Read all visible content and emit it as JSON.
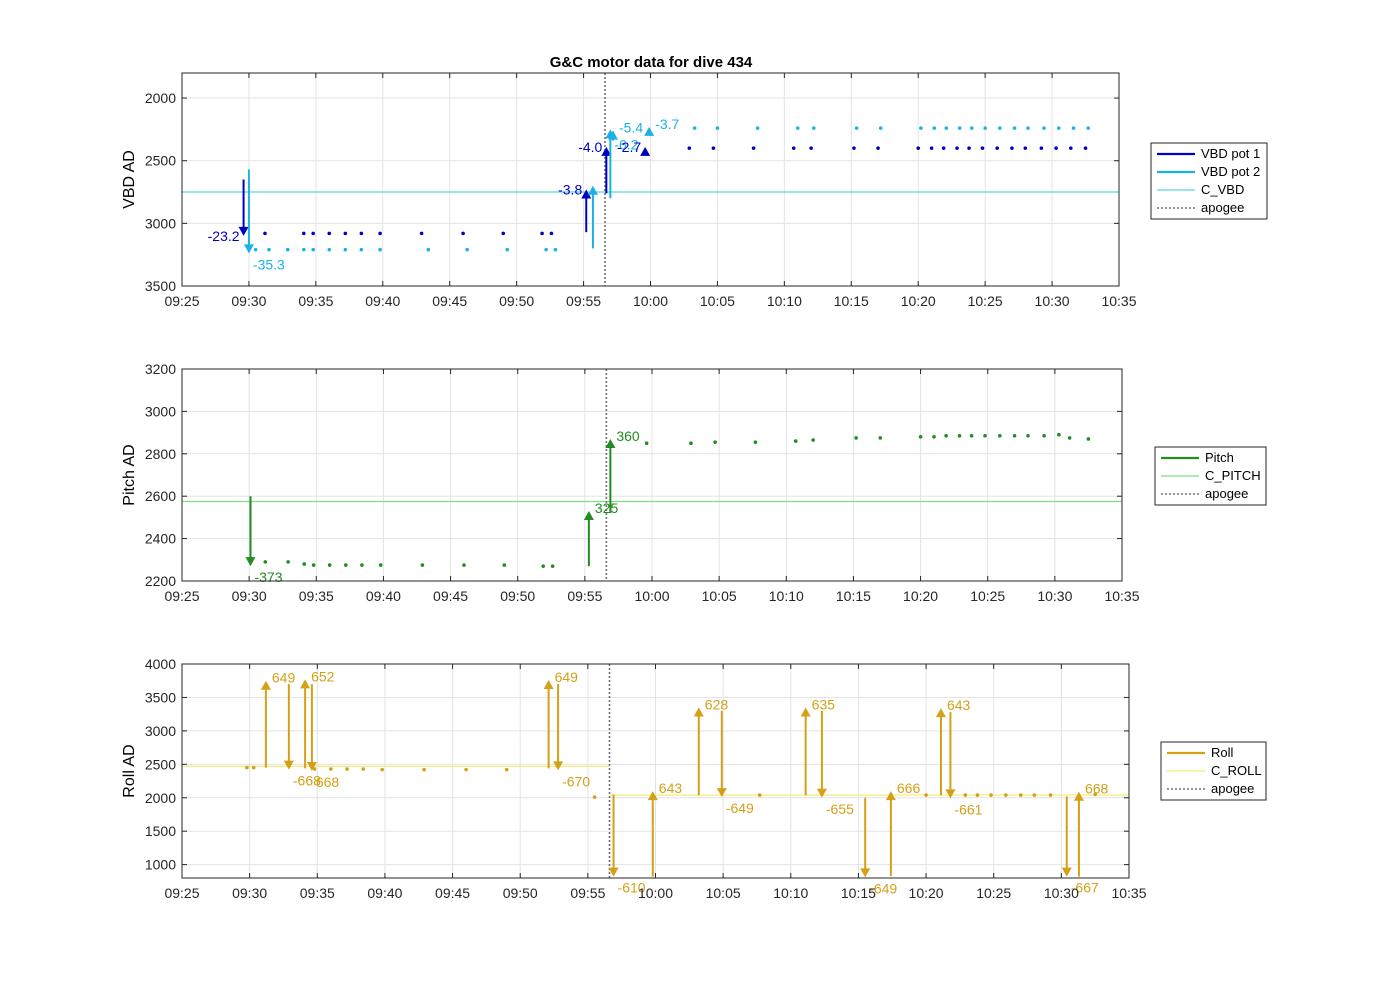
{
  "title": "G&C motor data for dive 434",
  "colors": {
    "vbd1": "#0000bf",
    "vbd2": "#1ab2e6",
    "c_vbd": "#5fd3e0",
    "pitch": "#228b22",
    "c_pitch": "#7fdf7f",
    "roll": "#d4a017",
    "c_roll": "#f2e96e",
    "apogee": "#707070"
  },
  "chart_data": [
    {
      "type": "scatter",
      "ylabel": "VBD AD",
      "ylim": [
        1800,
        3500
      ],
      "y_reversed": true,
      "yticks": [
        2000,
        2500,
        3000,
        3500
      ],
      "xlim": [
        "09:25",
        "10:35"
      ],
      "xticks": [
        "09:25",
        "09:30",
        "09:35",
        "09:40",
        "09:45",
        "09:50",
        "09:55",
        "10:00",
        "10:05",
        "10:10",
        "10:15",
        "10:20",
        "10:25",
        "10:30",
        "10:35"
      ],
      "grid": true,
      "legend": {
        "placement": "outside-right",
        "entries": [
          {
            "label": "VBD pot 1",
            "color_key": "vbd1",
            "style": "thick"
          },
          {
            "label": "VBD pot 2",
            "color_key": "vbd2",
            "style": "thick"
          },
          {
            "label": "C_VBD",
            "color_key": "c_vbd",
            "style": "thin"
          },
          {
            "label": "apogee",
            "color_key": "apogee",
            "style": "dotted"
          }
        ]
      },
      "hlines": [
        {
          "y": 2750,
          "color_key": "c_vbd"
        }
      ],
      "apogee_x": "09:56.6",
      "series": [
        {
          "name": "VBD pot 1",
          "color_key": "vbd1",
          "x": [
            "09:31.2",
            "09:34.1",
            "09:34.8",
            "09:36.0",
            "09:37.2",
            "09:38.4",
            "09:39.8",
            "09:42.9",
            "09:46.0",
            "09:49.0",
            "09:51.9",
            "09:52.6",
            "10:02.9",
            "10:04.7",
            "10:07.7",
            "10:10.7",
            "10:12.0",
            "10:15.2",
            "10:17.0",
            "10:20.0",
            "10:21.0",
            "10:21.9",
            "10:22.9",
            "10:23.8",
            "10:24.8",
            "10:25.9",
            "10:27.0",
            "10:28.0",
            "10:29.2",
            "10:30.3",
            "10:31.4",
            "10:32.5"
          ],
          "y": [
            3080,
            3080,
            3080,
            3080,
            3080,
            3080,
            3080,
            3080,
            3080,
            3080,
            3080,
            3080,
            2400,
            2400,
            2400,
            2400,
            2400,
            2400,
            2400,
            2400,
            2400,
            2400,
            2400,
            2400,
            2400,
            2400,
            2400,
            2400,
            2400,
            2400,
            2400,
            2400
          ]
        },
        {
          "name": "VBD pot 2",
          "color_key": "vbd2",
          "x": [
            "09:30.5",
            "09:31.5",
            "09:32.9",
            "09:34.1",
            "09:34.8",
            "09:36.0",
            "09:37.2",
            "09:38.4",
            "09:39.8",
            "09:43.4",
            "09:46.3",
            "09:49.3",
            "09:52.2",
            "09:52.9",
            "10:03.3",
            "10:05.0",
            "10:08.0",
            "10:11.0",
            "10:12.2",
            "10:15.4",
            "10:17.2",
            "10:20.2",
            "10:21.2",
            "10:22.1",
            "10:23.1",
            "10:24.0",
            "10:25.0",
            "10:26.1",
            "10:27.2",
            "10:28.2",
            "10:29.4",
            "10:30.5",
            "10:31.6",
            "10:32.7"
          ],
          "y": [
            3210,
            3210,
            3210,
            3210,
            3210,
            3210,
            3210,
            3210,
            3210,
            3210,
            3210,
            3210,
            3210,
            3210,
            2240,
            2240,
            2240,
            2240,
            2240,
            2240,
            2240,
            2240,
            2240,
            2240,
            2240,
            2240,
            2240,
            2240,
            2240,
            2240,
            2240,
            2240,
            2240,
            2240
          ]
        }
      ],
      "arrows": [
        {
          "series": "VBD pot 1",
          "x": "09:29.6",
          "y_from": 2650,
          "y_to": 3100,
          "label": "-23.2",
          "label_side": "left"
        },
        {
          "series": "VBD pot 2",
          "x": "09:30.0",
          "y_from": 2570,
          "y_to": 3240,
          "label": "-35.3",
          "label_side": "below-right"
        },
        {
          "series": "VBD pot 1",
          "x": "09:55.2",
          "y_from": 3070,
          "y_to": 2730,
          "label": "-3.8",
          "label_side": "left"
        },
        {
          "series": "VBD pot 2",
          "x": "09:55.7",
          "y_from": 3200,
          "y_to": 2700,
          "label": "",
          "label_side": "none"
        },
        {
          "series": "VBD pot 1",
          "x": "09:56.7",
          "y_from": 2760,
          "y_to": 2390,
          "label": "-4.0",
          "label_side": "left"
        },
        {
          "series": "VBD pot 2",
          "x": "09:57.0",
          "y_from": 2800,
          "y_to": 2250,
          "label": "-6.2",
          "label_side": "below-right"
        },
        {
          "series": "VBD pot 2",
          "x": "09:57.2",
          "y_from": 2340,
          "y_to": 2260,
          "label": "-5.4",
          "label_side": "right"
        },
        {
          "series": "VBD pot 1",
          "x": "09:59.6",
          "y_from": 2420,
          "y_to": 2390,
          "label": "-2.7",
          "label_side": "left"
        },
        {
          "series": "VBD pot 2",
          "x": "09:59.9",
          "y_from": 2260,
          "y_to": 2230,
          "label": "-3.7",
          "label_side": "right"
        }
      ]
    },
    {
      "type": "scatter",
      "ylabel": "Pitch AD",
      "ylim": [
        2200,
        3200
      ],
      "y_reversed": false,
      "yticks": [
        2200,
        2400,
        2600,
        2800,
        3000,
        3200
      ],
      "xlim": [
        "09:25",
        "10:35"
      ],
      "xticks": [
        "09:25",
        "09:30",
        "09:35",
        "09:40",
        "09:45",
        "09:50",
        "09:55",
        "10:00",
        "10:05",
        "10:10",
        "10:15",
        "10:20",
        "10:25",
        "10:30",
        "10:35"
      ],
      "grid": true,
      "legend": {
        "placement": "outside-right",
        "entries": [
          {
            "label": "Pitch",
            "color_key": "pitch",
            "style": "thick"
          },
          {
            "label": "C_PITCH",
            "color_key": "c_pitch",
            "style": "thin"
          },
          {
            "label": "apogee",
            "color_key": "apogee",
            "style": "dotted"
          }
        ]
      },
      "hlines": [
        {
          "y": 2575,
          "color_key": "c_pitch"
        }
      ],
      "apogee_x": "09:56.6",
      "series": [
        {
          "name": "Pitch",
          "color_key": "pitch",
          "x": [
            "09:31.2",
            "09:32.9",
            "09:34.1",
            "09:34.8",
            "09:36.0",
            "09:37.2",
            "09:38.4",
            "09:39.8",
            "09:42.9",
            "09:46.0",
            "09:49.0",
            "09:51.9",
            "09:52.6",
            "09:59.6",
            "10:02.9",
            "10:04.7",
            "10:07.7",
            "10:10.7",
            "10:12.0",
            "10:15.2",
            "10:17.0",
            "10:20.0",
            "10:21.0",
            "10:21.9",
            "10:22.9",
            "10:23.8",
            "10:24.8",
            "10:25.9",
            "10:27.0",
            "10:28.0",
            "10:29.2",
            "10:30.3",
            "10:31.1",
            "10:32.5"
          ],
          "y": [
            2290,
            2290,
            2280,
            2275,
            2275,
            2275,
            2275,
            2275,
            2275,
            2275,
            2275,
            2270,
            2270,
            2850,
            2850,
            2855,
            2855,
            2860,
            2865,
            2875,
            2875,
            2880,
            2880,
            2885,
            2885,
            2885,
            2885,
            2885,
            2885,
            2885,
            2885,
            2890,
            2875,
            2870
          ]
        }
      ],
      "arrows": [
        {
          "series": "Pitch",
          "x": "09:30.1",
          "y_from": 2600,
          "y_to": 2270,
          "label": "-373",
          "label_side": "below-right"
        },
        {
          "series": "Pitch",
          "x": "09:55.3",
          "y_from": 2270,
          "y_to": 2530,
          "label": "325",
          "label_side": "right"
        },
        {
          "series": "Pitch",
          "x": "09:56.9",
          "y_from": 2520,
          "y_to": 2870,
          "label": "360",
          "label_side": "right"
        }
      ]
    },
    {
      "type": "scatter",
      "ylabel": "Roll AD",
      "ylim": [
        800,
        4000
      ],
      "y_reversed": false,
      "yticks": [
        1000,
        1500,
        2000,
        2500,
        3000,
        3500,
        4000
      ],
      "xlim": [
        "09:25",
        "10:35"
      ],
      "xticks": [
        "09:25",
        "09:30",
        "09:35",
        "09:40",
        "09:45",
        "09:50",
        "09:55",
        "10:00",
        "10:05",
        "10:10",
        "10:15",
        "10:20",
        "10:25",
        "10:30",
        "10:35"
      ],
      "grid": true,
      "legend": {
        "placement": "outside-right",
        "entries": [
          {
            "label": "Roll",
            "color_key": "roll",
            "style": "thick"
          },
          {
            "label": "C_ROLL",
            "color_key": "c_roll",
            "style": "thin"
          },
          {
            "label": "apogee",
            "color_key": "apogee",
            "style": "dotted"
          }
        ]
      },
      "hlines": [
        {
          "y": 2470,
          "color_key": "c_roll",
          "x_from": "09:25",
          "x_to": "09:56.6"
        },
        {
          "y": 2040,
          "color_key": "c_roll",
          "x_from": "09:56.6",
          "x_to": "10:35"
        }
      ],
      "apogee_x": "09:56.6",
      "series": [
        {
          "name": "Roll",
          "color_key": "roll",
          "x": [
            "09:29.8",
            "09:30.3",
            "09:34.8",
            "09:36.0",
            "09:37.2",
            "09:38.4",
            "09:39.8",
            "09:42.9",
            "09:46.0",
            "09:49.0",
            "09:55.5",
            "10:07.7",
            "10:20.0",
            "10:22.9",
            "10:23.8",
            "10:24.8",
            "10:25.9",
            "10:27.0",
            "10:28.0",
            "10:29.2",
            "10:32.5"
          ],
          "y": [
            2450,
            2450,
            2430,
            2430,
            2430,
            2430,
            2420,
            2420,
            2420,
            2420,
            2010,
            2040,
            2040,
            2040,
            2040,
            2040,
            2040,
            2040,
            2040,
            2040,
            2050
          ]
        }
      ],
      "arrows": [
        {
          "series": "Roll",
          "x": "09:31.2",
          "y_from": 2450,
          "y_to": 3750,
          "label": "649",
          "label_side": "right"
        },
        {
          "series": "Roll",
          "x": "09:32.9",
          "y_from": 3700,
          "y_to": 2420,
          "label": "-668",
          "label_side": "below-right"
        },
        {
          "series": "Roll",
          "x": "09:34.1",
          "y_from": 2440,
          "y_to": 3770,
          "label": "652",
          "label_side": "right"
        },
        {
          "series": "Roll",
          "x": "09:34.6",
          "y_from": 3700,
          "y_to": 2400,
          "label": "668",
          "label_side": "below-right"
        },
        {
          "series": "Roll",
          "x": "09:52.1",
          "y_from": 2440,
          "y_to": 3760,
          "label": "649",
          "label_side": "right"
        },
        {
          "series": "Roll",
          "x": "09:52.8",
          "y_from": 3700,
          "y_to": 2410,
          "label": "-670",
          "label_side": "below-right"
        },
        {
          "series": "Roll",
          "x": "09:56.9",
          "y_from": 2050,
          "y_to": 820,
          "label": "-610",
          "label_side": "below-right"
        },
        {
          "series": "Roll",
          "x": "09:59.8",
          "y_from": 820,
          "y_to": 2100,
          "label": "643",
          "label_side": "right"
        },
        {
          "series": "Roll",
          "x": "10:03.2",
          "y_from": 2040,
          "y_to": 3350,
          "label": "628",
          "label_side": "right"
        },
        {
          "series": "Roll",
          "x": "10:04.9",
          "y_from": 3300,
          "y_to": 2010,
          "label": "-649",
          "label_side": "below-right"
        },
        {
          "series": "Roll",
          "x": "10:11.1",
          "y_from": 2040,
          "y_to": 3350,
          "label": "635",
          "label_side": "right"
        },
        {
          "series": "Roll",
          "x": "10:12.3",
          "y_from": 3300,
          "y_to": 2000,
          "label": "-655",
          "label_side": "below-right"
        },
        {
          "series": "Roll",
          "x": "10:15.5",
          "y_from": 2000,
          "y_to": 810,
          "label": "-649",
          "label_side": "below-right"
        },
        {
          "series": "Roll",
          "x": "10:17.4",
          "y_from": 830,
          "y_to": 2100,
          "label": "666",
          "label_side": "right"
        },
        {
          "series": "Roll",
          "x": "10:21.1",
          "y_from": 2040,
          "y_to": 3340,
          "label": "643",
          "label_side": "right"
        },
        {
          "series": "Roll",
          "x": "10:21.8",
          "y_from": 3280,
          "y_to": 1990,
          "label": "-661",
          "label_side": "below-right"
        },
        {
          "series": "Roll",
          "x": "10:30.4",
          "y_from": 2020,
          "y_to": 820,
          "label": "-667",
          "label_side": "below-right"
        },
        {
          "series": "Roll",
          "x": "10:31.3",
          "y_from": 820,
          "y_to": 2090,
          "label": "668",
          "label_side": "right"
        }
      ]
    }
  ]
}
